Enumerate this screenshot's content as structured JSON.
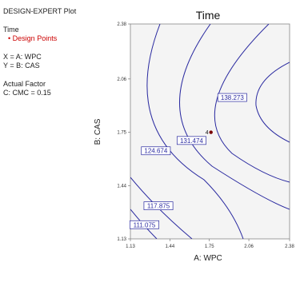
{
  "panel": {
    "plot_title": "DESIGN-EXPERT Plot",
    "response": "Time",
    "design_points_label": "Design Points",
    "x_assignment": "X = A: WPC",
    "y_assignment": "Y = B: CAS",
    "actual_factor_heading": "Actual Factor",
    "actual_factor_value": "C: CMC = 0.15"
  },
  "chart_data": {
    "type": "contour",
    "title": "Time",
    "xlabel": "A: WPC",
    "ylabel": "B: CAS",
    "xlim": [
      1.13,
      2.38
    ],
    "ylim": [
      1.13,
      2.38
    ],
    "x_ticks": [
      "1.13",
      "1.44",
      "1.75",
      "2.06",
      "2.38"
    ],
    "y_ticks": [
      "1.13",
      "1.44",
      "1.75",
      "2.06",
      "2.38"
    ],
    "contour_levels": [
      {
        "label": "111.075",
        "value": 111.075,
        "label_at": [
          1.24,
          1.21
        ]
      },
      {
        "label": "117.875",
        "value": 117.875,
        "label_at": [
          1.35,
          1.32
        ]
      },
      {
        "label": "124.674",
        "value": 124.674,
        "label_at": [
          1.33,
          1.64
        ]
      },
      {
        "label": "131.474",
        "value": 131.474,
        "label_at": [
          1.61,
          1.7
        ]
      },
      {
        "label": "138.273",
        "value": 138.273,
        "label_at": [
          1.93,
          1.95
        ]
      }
    ],
    "design_points": [
      {
        "x": 1.75,
        "y": 1.75,
        "count_label": "4"
      }
    ],
    "colors": {
      "contour": "#2a2aa0",
      "design_point": "#7a0000",
      "design_points_legend": "#cc0000",
      "plot_background": "#f4f4f4"
    }
  }
}
